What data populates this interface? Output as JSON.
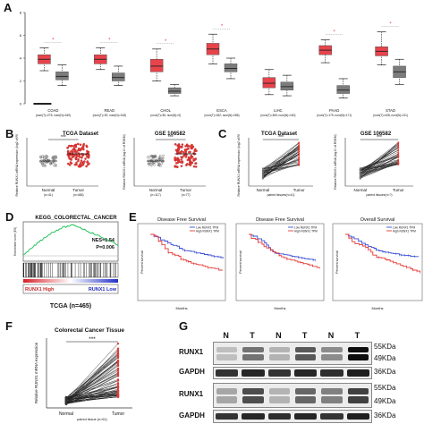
{
  "panels": {
    "A": {
      "label": "A",
      "groups": [
        {
          "name": "COAD",
          "sub": "(num(T)=275; num(N)=349)",
          "tumor": [
            3.5,
            3.9,
            4.3,
            2.9,
            4.9
          ],
          "normal": [
            2.1,
            2.4,
            2.8,
            1.6,
            3.4
          ],
          "sig": true
        },
        {
          "name": "READ",
          "sub": "(num(T)=92; num(N)=318)",
          "tumor": [
            3.5,
            3.9,
            4.3,
            3.0,
            4.9
          ],
          "normal": [
            2.0,
            2.3,
            2.7,
            1.6,
            3.3
          ],
          "sig": true
        },
        {
          "name": "CHOL",
          "sub": "(num(T)=36; num(N)=9)",
          "tumor": [
            2.8,
            3.3,
            3.9,
            2.0,
            4.8
          ],
          "normal": [
            0.9,
            1.1,
            1.4,
            0.7,
            1.7
          ],
          "sig": true
        },
        {
          "name": "ESCA",
          "sub": "(num(T)=182; num(N)=286)",
          "tumor": [
            4.3,
            4.8,
            5.3,
            3.5,
            6.1
          ],
          "normal": [
            2.8,
            3.1,
            3.5,
            2.2,
            4.0
          ],
          "sig": true
        },
        {
          "name": "LIHC",
          "sub": "(num(T)=369; num(N)=160)",
          "tumor": [
            1.4,
            1.8,
            2.3,
            0.8,
            3.0
          ],
          "normal": [
            1.2,
            1.5,
            1.9,
            0.7,
            2.5
          ],
          "sig": false
        },
        {
          "name": "PAAD",
          "sub": "(num(T)=179; num(N)=171)",
          "tumor": [
            4.3,
            4.7,
            5.1,
            3.6,
            5.6
          ],
          "normal": [
            0.9,
            1.2,
            1.6,
            0.5,
            2.2
          ],
          "sig": true
        },
        {
          "name": "STAD",
          "sub": "(num(T)=408; num(N)=211)",
          "tumor": [
            4.2,
            4.6,
            5.0,
            3.4,
            6.3
          ],
          "normal": [
            2.3,
            2.8,
            3.3,
            1.7,
            3.9
          ],
          "sig": true
        }
      ],
      "ylim": [
        0,
        8
      ]
    },
    "B": {
      "label": "B",
      "left": {
        "title": "TCGA Dataset",
        "ylabel": "Relative RUNX1 mRNA expression (log2 of RSEM)",
        "sig": "***",
        "cats": [
          "Normal",
          "Tumor"
        ],
        "subs": [
          "(n=41)",
          "(n=465)"
        ]
      },
      "right": {
        "title": "GSE 106582",
        "ylabel": "Relative RUNX1 mRNA (log10 of RSEM)",
        "sig": "***",
        "cats": [
          "Normal",
          "Tumor"
        ],
        "subs": [
          "(n=117)",
          "(n=77)"
        ]
      }
    },
    "C": {
      "label": "C",
      "left": {
        "title": "TCGA Dataset",
        "ylabel": "Relative RUNX1 mRNA expression (log2 of RSEM)",
        "sig": "***",
        "cats": [
          "Normal",
          "Tumor"
        ],
        "foot": "paired tissues(n=41)"
      },
      "right": {
        "title": "GSE 106582",
        "ylabel": "Relative RUNX1 mRNA (log10 of RSEM)",
        "sig": "***",
        "cats": [
          "Normal",
          "Tumor"
        ],
        "foot": "paired tissues(n=?)"
      }
    },
    "D": {
      "label": "D",
      "title": "KEGG_COLORECTAL_CANCER",
      "nes": "NES=1.54",
      "p": "P=0.006",
      "high": "RUNX1 High",
      "low": "RUNX1 Low",
      "footer": "TCGA (n=465)",
      "ylabel": "Enrichment score (ES)"
    },
    "E": {
      "label": "E",
      "plots": [
        {
          "title": "Disease Free Survival",
          "ylabel": "Percent survival",
          "xlabel": "Months",
          "legend": [
            "Low RUNX1 TPM",
            "High RUNX1 TPM"
          ]
        },
        {
          "title": "Disease Free Survival",
          "ylabel": "Percent survival",
          "xlabel": "Months",
          "legend": [
            "Low RUNX1 TPM",
            "High RUNX1 TPM"
          ]
        },
        {
          "title": "Overall Survival",
          "ylabel": "Percent survival",
          "xlabel": "Months",
          "legend": [
            "Low RUNX1 TPM",
            "High RUNX1 TPM"
          ]
        }
      ]
    },
    "F": {
      "label": "F",
      "title": "Colorectal Cancer Tissue",
      "ylabel": "Relative RUNX1 mRNA expression",
      "sig": "***",
      "cats": [
        "Normal",
        "Tumor"
      ],
      "foot": "paired tissue (n=61)"
    },
    "G": {
      "label": "G",
      "lanes": [
        "N",
        "T",
        "N",
        "T",
        "N",
        "T"
      ],
      "rows": [
        "RUNX1",
        "GAPDH",
        "RUNX1",
        "GAPDH"
      ],
      "kda_runx": [
        "55KDa",
        "49KDa"
      ],
      "kda_gapdh": "36KDa"
    }
  },
  "colors": {
    "tumor": "#e8434b",
    "normal": "#7c7c7c",
    "red": "#e53935",
    "blue": "#3a4fd6",
    "green": "#22c35a"
  }
}
